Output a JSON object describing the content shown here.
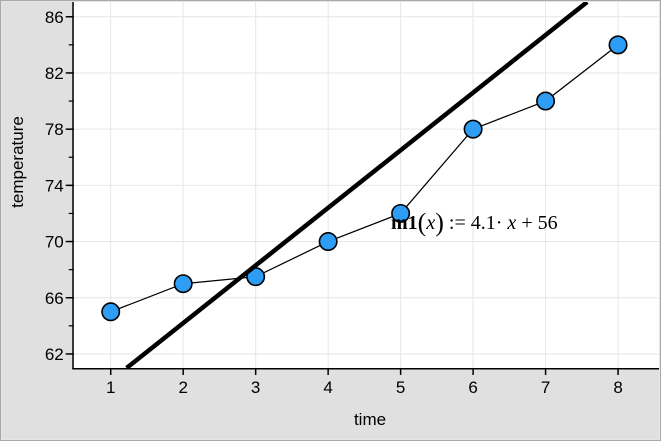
{
  "axes": {
    "x": {
      "label": "time",
      "ticks": [
        1,
        2,
        3,
        4,
        5,
        6,
        7,
        8
      ]
    },
    "y": {
      "label": "temperature",
      "ticks": [
        62,
        66,
        70,
        74,
        78,
        82,
        86
      ],
      "minor_step": 2
    }
  },
  "trend_label": {
    "name": "m1",
    "open": "(",
    "arg": "x",
    "close": ")",
    "assign": " := ",
    "coef": "4.1· ",
    "var": "x ",
    "rest": "+ 56",
    "full_text": "m1(x) := 4.1·x + 56"
  },
  "chart_data": {
    "type": "scatter",
    "x": [
      1,
      2,
      3,
      4,
      5,
      6,
      7,
      8
    ],
    "y": [
      65,
      67,
      67.5,
      70,
      72,
      78,
      80,
      84
    ],
    "connect_points": true,
    "trend": {
      "label": "m1(x) := 4.1·x + 56",
      "slope": 4.1,
      "intercept": 56
    },
    "title": "",
    "xlabel": "time",
    "ylabel": "temperature",
    "xlim": [
      0.49,
      8.565
    ],
    "ylim": [
      61.0,
      87.05
    ],
    "xticks": [
      1,
      2,
      3,
      4,
      5,
      6,
      7,
      8
    ],
    "yticks": [
      62,
      66,
      70,
      74,
      78,
      82,
      86
    ],
    "grid": true,
    "legend": "none"
  },
  "colors": {
    "point_fill": "#2e9df5",
    "point_stroke": "#000000",
    "series_line": "#000000",
    "trend_line": "#000000",
    "grid": "#e6e6e6",
    "axis": "#000000",
    "plot_bg": "#ffffff",
    "margin_bg": "#e0e0e0",
    "text": "#000000"
  }
}
